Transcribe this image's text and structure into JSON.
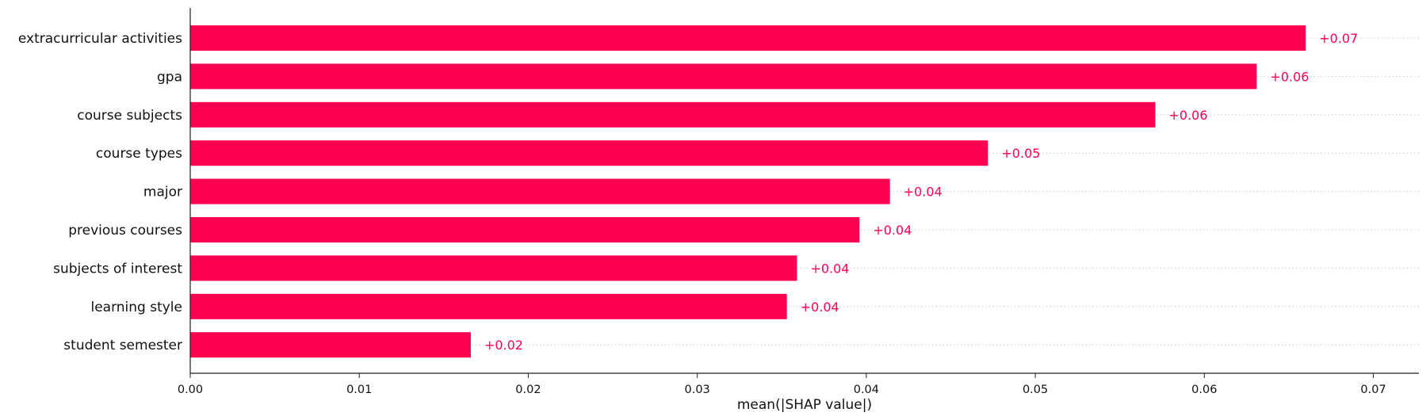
{
  "chart_data": {
    "type": "bar",
    "orientation": "horizontal",
    "categories": [
      "extracurricular activities",
      "gpa",
      "course subjects",
      "course types",
      "major",
      "previous courses",
      "subjects of interest",
      "learning style",
      "student semester"
    ],
    "values": [
      0.066,
      0.0631,
      0.0571,
      0.0472,
      0.0414,
      0.0396,
      0.0359,
      0.0353,
      0.0166
    ],
    "value_labels": [
      "+0.07",
      "+0.06",
      "+0.06",
      "+0.05",
      "+0.04",
      "+0.04",
      "+0.04",
      "+0.04",
      "+0.02"
    ],
    "title": "",
    "xlabel": "mean(|SHAP value|)",
    "ylabel": "",
    "xlim": [
      0,
      0.0727
    ],
    "xticks": [
      0,
      0.01,
      0.02,
      0.03,
      0.04,
      0.05,
      0.06,
      0.07
    ],
    "xtick_labels": [
      "0.00",
      "0.01",
      "0.02",
      "0.03",
      "0.04",
      "0.05",
      "0.06",
      "0.07"
    ],
    "grid": "dotted horizontal guide lines per category",
    "bar_color": "#ff0051",
    "label_color": "#ff0051"
  }
}
